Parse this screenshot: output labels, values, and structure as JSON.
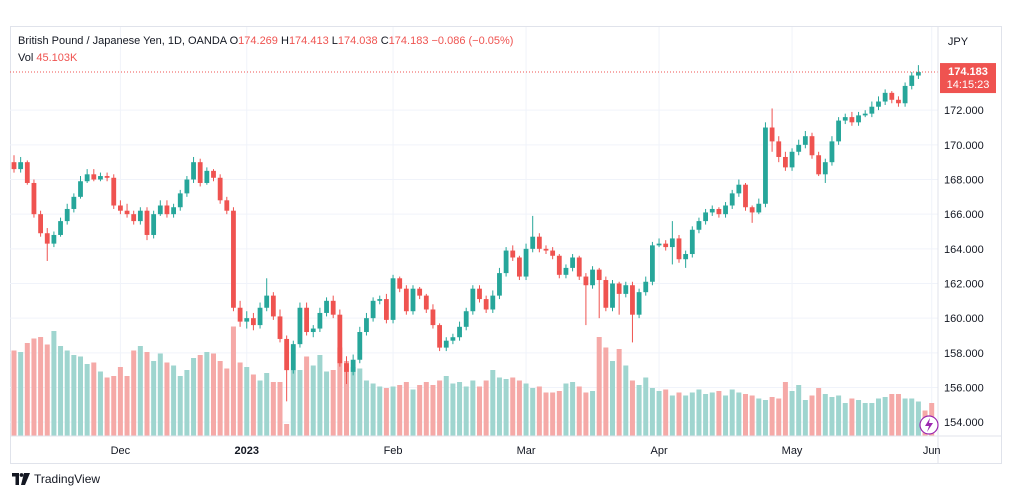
{
  "legend": {
    "title": "British Pound / Japanese Yen, 1D, OANDA",
    "open_label": "O",
    "open": "174.269",
    "high_label": "H",
    "high": "174.413",
    "low_label": "L",
    "low": "174.038",
    "close_label": "C",
    "close": "174.183",
    "change": "−0.086 (−0.05%)",
    "vol_label": "Vol",
    "vol": "45.103K"
  },
  "currency": "JPY",
  "price_tag": {
    "price": "174.183",
    "countdown": "14:15:23"
  },
  "footer": {
    "brand": "TradingView",
    "logo": "tradingview-logo-icon"
  },
  "colors": {
    "up": "#26a69a",
    "down": "#ef5350",
    "vol_up": "#9fd5cf",
    "vol_down": "#f5a9a7"
  },
  "chart_data": {
    "type": "candlestick",
    "symbol": "GBPJPY",
    "interval": "1D",
    "y_unit": "JPY",
    "ylim": [
      153.2,
      176.8
    ],
    "y_ticks": [
      "154.000",
      "156.000",
      "158.000",
      "160.000",
      "162.000",
      "164.000",
      "166.000",
      "168.000",
      "170.000",
      "172.000"
    ],
    "x_ticks": [
      {
        "label": "Dec",
        "index": 16
      },
      {
        "label": "2023",
        "index": 35
      },
      {
        "label": "Feb",
        "index": 57
      },
      {
        "label": "Mar",
        "index": 77
      },
      {
        "label": "Apr",
        "index": 97
      },
      {
        "label": "May",
        "index": 117
      },
      {
        "label": "Jun",
        "index": 138
      }
    ],
    "close": [
      168.6,
      169.0,
      167.8,
      166.0,
      164.9,
      164.3,
      164.8,
      165.6,
      166.3,
      167.0,
      167.9,
      168.3,
      168.0,
      168.2,
      168.1,
      166.5,
      166.2,
      166.0,
      165.6,
      166.2,
      164.8,
      166.0,
      166.5,
      166.0,
      166.4,
      167.2,
      168.0,
      169.0,
      167.8,
      168.5,
      168.1,
      166.8,
      166.2,
      160.6,
      159.8,
      160.0,
      159.6,
      160.6,
      161.3,
      160.1,
      158.8,
      157.0,
      158.5,
      160.6,
      159.2,
      159.4,
      160.3,
      161.0,
      160.2,
      157.4,
      156.9,
      157.6,
      159.2,
      160.0,
      161.0,
      161.1,
      159.9,
      162.3,
      161.7,
      160.4,
      161.7,
      161.3,
      160.5,
      159.6,
      158.3,
      158.7,
      158.9,
      159.5,
      160.4,
      161.7,
      161.1,
      160.5,
      161.3,
      162.6,
      163.9,
      163.5,
      162.4,
      164.0,
      164.7,
      164.0,
      163.9,
      163.6,
      162.5,
      162.9,
      163.5,
      162.4,
      161.9,
      162.8,
      162.2,
      160.6,
      162.0,
      161.4,
      161.9,
      160.2,
      161.5,
      162.1,
      164.2,
      164.3,
      164.1,
      164.6,
      163.4,
      163.7,
      165.1,
      165.6,
      166.1,
      166.3,
      166.0,
      166.5,
      167.2,
      167.7,
      166.4,
      166.1,
      166.6,
      171.0,
      170.2,
      169.3,
      168.7,
      169.6,
      170.0,
      170.5,
      169.4,
      168.3,
      169.0,
      170.2,
      171.4,
      171.6,
      171.3,
      171.7,
      171.8,
      172.2,
      172.5,
      173.0,
      172.6,
      172.4,
      173.4,
      174.0,
      174.2
    ],
    "open": [
      169.0,
      168.6,
      169.0,
      167.8,
      166.0,
      164.9,
      164.3,
      164.8,
      165.6,
      166.3,
      167.0,
      167.9,
      168.3,
      168.0,
      168.2,
      168.1,
      166.5,
      166.2,
      166.0,
      165.6,
      166.2,
      164.8,
      166.0,
      166.5,
      166.0,
      166.4,
      167.2,
      168.0,
      169.0,
      167.8,
      168.5,
      168.1,
      166.8,
      166.2,
      160.6,
      159.8,
      160.0,
      159.6,
      160.6,
      161.3,
      160.1,
      158.8,
      157.0,
      158.5,
      160.6,
      159.2,
      159.4,
      160.3,
      161.0,
      160.2,
      157.4,
      156.9,
      157.6,
      159.2,
      160.0,
      161.0,
      161.1,
      159.9,
      162.3,
      161.7,
      160.4,
      161.7,
      161.3,
      160.5,
      159.6,
      158.3,
      158.7,
      158.9,
      159.5,
      160.4,
      161.7,
      161.1,
      160.5,
      161.3,
      162.6,
      163.9,
      163.5,
      162.4,
      164.0,
      164.7,
      164.0,
      163.9,
      163.6,
      162.5,
      162.9,
      163.5,
      162.4,
      161.9,
      162.8,
      162.2,
      160.6,
      162.0,
      161.4,
      161.9,
      160.2,
      161.5,
      162.1,
      164.2,
      164.3,
      164.1,
      164.6,
      163.4,
      163.7,
      165.1,
      165.6,
      166.1,
      166.3,
      166.0,
      166.5,
      167.2,
      167.7,
      166.4,
      166.1,
      166.6,
      171.0,
      170.2,
      169.3,
      168.7,
      169.6,
      170.0,
      170.5,
      169.4,
      168.3,
      169.0,
      170.2,
      171.4,
      171.6,
      171.3,
      171.7,
      171.8,
      172.2,
      172.5,
      173.0,
      172.6,
      172.4,
      173.4,
      174.0
    ],
    "high": [
      169.4,
      169.3,
      169.1,
      168.0,
      166.2,
      165.2,
      165.0,
      165.8,
      166.6,
      167.2,
      168.2,
      168.6,
      168.6,
      168.4,
      168.4,
      168.3,
      166.8,
      166.6,
      166.2,
      166.4,
      166.4,
      166.2,
      166.8,
      166.8,
      166.6,
      167.4,
      168.2,
      169.3,
      169.2,
      168.7,
      168.6,
      168.3,
      167.0,
      166.4,
      161.0,
      160.4,
      160.3,
      160.9,
      162.3,
      161.5,
      160.5,
      159.0,
      158.7,
      160.9,
      160.9,
      159.6,
      160.6,
      161.2,
      161.3,
      160.5,
      157.8,
      157.9,
      159.5,
      160.3,
      161.2,
      161.3,
      161.4,
      162.5,
      162.4,
      161.9,
      161.9,
      161.8,
      161.4,
      160.8,
      159.7,
      158.9,
      159.1,
      159.8,
      160.6,
      161.9,
      161.9,
      161.3,
      161.6,
      162.9,
      164.1,
      164.2,
      163.6,
      164.3,
      165.9,
      164.9,
      164.2,
      164.1,
      163.7,
      163.1,
      163.7,
      163.6,
      162.6,
      163.0,
      162.9,
      162.4,
      162.2,
      162.1,
      162.1,
      162.1,
      161.7,
      162.4,
      164.4,
      164.6,
      164.5,
      165.6,
      164.8,
      163.9,
      165.3,
      165.8,
      166.3,
      166.5,
      166.4,
      166.7,
      167.4,
      168.0,
      167.8,
      166.5,
      166.9,
      171.3,
      172.1,
      170.5,
      169.6,
      169.8,
      170.3,
      170.8,
      170.7,
      169.6,
      169.2,
      170.5,
      171.6,
      171.8,
      171.9,
      171.9,
      172.0,
      172.5,
      172.8,
      173.2,
      173.1,
      172.8,
      173.6,
      174.2,
      174.6
    ],
    "low": [
      168.4,
      168.4,
      167.7,
      165.8,
      164.7,
      163.3,
      164.1,
      164.7,
      165.4,
      166.1,
      166.9,
      167.8,
      167.9,
      167.9,
      167.9,
      166.3,
      166.0,
      165.8,
      165.4,
      165.4,
      164.5,
      164.6,
      165.9,
      165.8,
      165.8,
      166.2,
      167.0,
      167.8,
      167.6,
      167.7,
      167.9,
      166.6,
      166.0,
      160.4,
      159.5,
      159.4,
      159.3,
      159.4,
      160.4,
      159.9,
      158.6,
      155.2,
      156.8,
      158.3,
      159.0,
      158.9,
      159.2,
      160.1,
      160.0,
      157.2,
      156.2,
      156.7,
      157.4,
      159.0,
      159.8,
      160.8,
      159.7,
      159.7,
      161.5,
      160.2,
      160.2,
      161.1,
      160.3,
      159.4,
      158.1,
      158.1,
      158.5,
      158.7,
      159.3,
      160.2,
      160.9,
      160.3,
      160.3,
      161.1,
      162.4,
      163.3,
      162.2,
      162.2,
      163.8,
      163.8,
      163.7,
      163.4,
      162.3,
      162.3,
      162.7,
      162.2,
      159.6,
      161.7,
      160.0,
      160.4,
      160.4,
      160.2,
      161.2,
      158.6,
      160.0,
      161.3,
      161.9,
      164.1,
      163.9,
      163.1,
      163.2,
      162.9,
      163.5,
      164.9,
      165.4,
      165.9,
      165.8,
      165.8,
      166.3,
      167.0,
      166.2,
      165.5,
      166.0,
      166.4,
      169.6,
      169.0,
      168.5,
      168.5,
      169.4,
      169.8,
      169.2,
      168.2,
      167.8,
      168.8,
      170.0,
      171.2,
      171.1,
      171.1,
      171.6,
      171.6,
      172.0,
      172.3,
      172.4,
      172.2,
      172.2,
      173.2,
      173.8
    ],
    "volume_ratio": [
      0.57,
      0.56,
      0.62,
      0.65,
      0.66,
      0.61,
      0.7,
      0.6,
      0.57,
      0.54,
      0.53,
      0.48,
      0.49,
      0.43,
      0.39,
      0.4,
      0.46,
      0.4,
      0.57,
      0.6,
      0.56,
      0.5,
      0.55,
      0.49,
      0.47,
      0.4,
      0.44,
      0.52,
      0.54,
      0.56,
      0.55,
      0.5,
      0.45,
      0.73,
      0.49,
      0.46,
      0.41,
      0.37,
      0.42,
      0.36,
      0.36,
      0.08,
      0.44,
      0.44,
      0.53,
      0.47,
      0.54,
      0.43,
      0.44,
      0.59,
      0.5,
      0.46,
      0.45,
      0.37,
      0.35,
      0.33,
      0.32,
      0.33,
      0.34,
      0.36,
      0.31,
      0.34,
      0.36,
      0.34,
      0.37,
      0.4,
      0.35,
      0.36,
      0.33,
      0.37,
      0.33,
      0.37,
      0.44,
      0.39,
      0.38,
      0.39,
      0.37,
      0.35,
      0.32,
      0.33,
      0.29,
      0.29,
      0.3,
      0.35,
      0.36,
      0.33,
      0.29,
      0.3,
      0.66,
      0.59,
      0.5,
      0.58,
      0.47,
      0.37,
      0.34,
      0.39,
      0.32,
      0.3,
      0.31,
      0.27,
      0.29,
      0.27,
      0.29,
      0.31,
      0.28,
      0.29,
      0.3,
      0.27,
      0.31,
      0.29,
      0.28,
      0.27,
      0.25,
      0.24,
      0.26,
      0.25,
      0.36,
      0.3,
      0.34,
      0.24,
      0.27,
      0.32,
      0.28,
      0.26,
      0.27,
      0.22,
      0.25,
      0.24,
      0.22,
      0.22,
      0.25,
      0.26,
      0.28,
      0.28,
      0.25,
      0.25,
      0.23,
      0.17,
      0.22
    ]
  }
}
